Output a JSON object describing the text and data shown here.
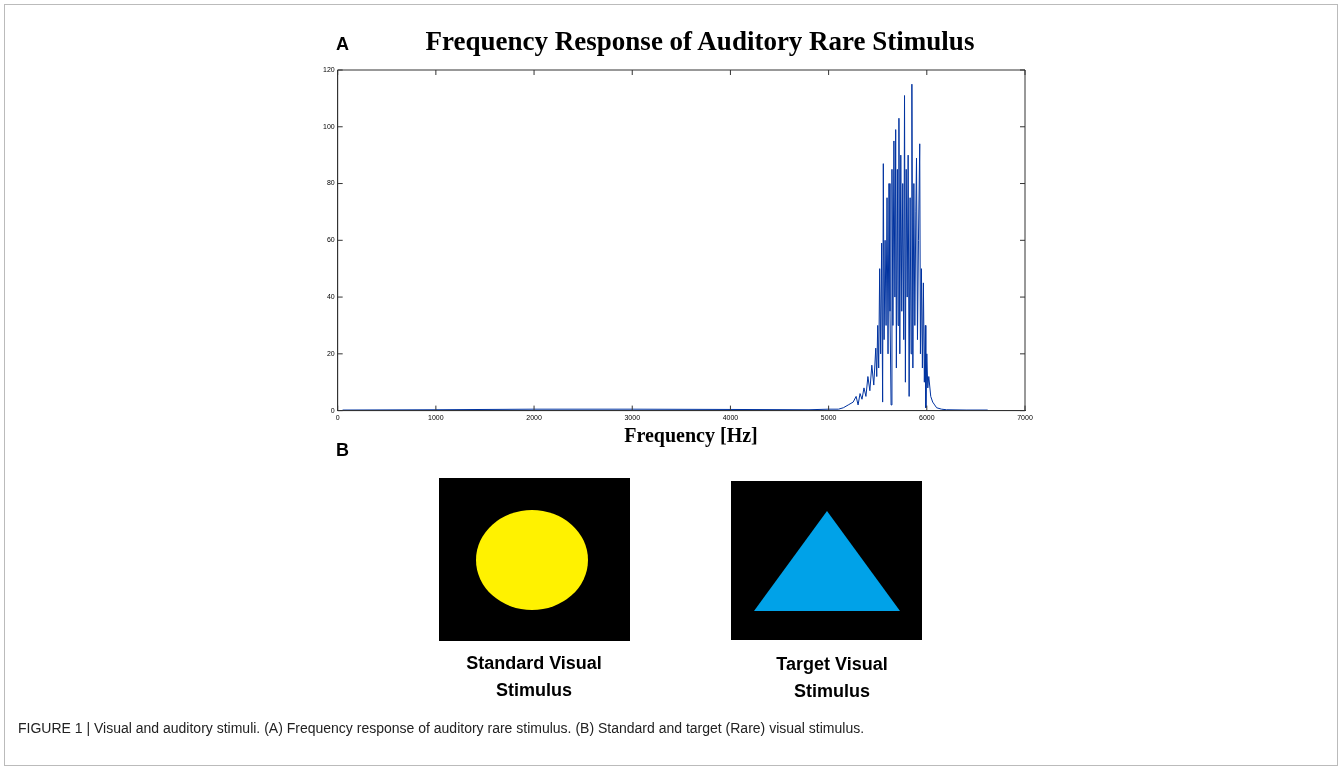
{
  "chart_data": {
    "type": "line",
    "title": "Frequency Response of Auditory Rare Stimulus",
    "xlabel": "Frequency [Hz]",
    "annotations": [
      "A",
      "B",
      "Standard Visual Stimulus",
      "Target Visual Stimulus",
      "FIGURE 1 | Visual and auditory stimuli. (A) Frequency response of auditory rare stimulus. (B) Standard and target (Rare) visual stimulus."
    ],
    "xlim": [
      0,
      7000
    ],
    "xticks": [
      0,
      1000,
      2000,
      3000,
      4000,
      5000,
      6000,
      7000
    ],
    "ylim": [
      0,
      120
    ],
    "yticks": [
      0,
      20,
      40,
      60,
      80,
      100,
      120
    ],
    "grid": false,
    "legend": false,
    "marker": "none",
    "line_style": "solid",
    "series": [
      {
        "color": "#0033a0",
        "x": [
          50,
          1000,
          2000,
          3000,
          4000,
          4800,
          5000,
          5100,
          5150,
          5200,
          5250,
          5280,
          5300,
          5320,
          5340,
          5360,
          5380,
          5400,
          5420,
          5440,
          5460,
          5480,
          5490,
          5500,
          5510,
          5520,
          5530,
          5540,
          5550,
          5557,
          5565,
          5575,
          5585,
          5595,
          5605,
          5615,
          5625,
          5636,
          5645,
          5655,
          5665,
          5675,
          5683,
          5690,
          5700,
          5708,
          5716,
          5725,
          5735,
          5745,
          5755,
          5765,
          5773,
          5782,
          5790,
          5800,
          5810,
          5820,
          5830,
          5840,
          5848,
          5858,
          5868,
          5878,
          5888,
          5895,
          5905,
          5915,
          5928,
          5935,
          5945,
          5955,
          5965,
          5975,
          5985,
          5990,
          6000,
          6010,
          6020,
          6040,
          6060,
          6080,
          6100,
          6150,
          6200,
          6400,
          6620
        ],
        "values": [
          0.2,
          0.3,
          0.5,
          0.5,
          0.4,
          0.3,
          0.5,
          0.5,
          1,
          2,
          3,
          5,
          2,
          6,
          4,
          8,
          5,
          12,
          7,
          16,
          9,
          22,
          12,
          30,
          15,
          50,
          20,
          59,
          3,
          87,
          25,
          60,
          30,
          75,
          20,
          80,
          35,
          2,
          85,
          30,
          95,
          40,
          99,
          15,
          85,
          30,
          103,
          20,
          90,
          35,
          80,
          25,
          111,
          10,
          85,
          40,
          90,
          5,
          75,
          20,
          115,
          15,
          80,
          30,
          70,
          89,
          25,
          60,
          94,
          20,
          50,
          15,
          45,
          10,
          30,
          1,
          20,
          8,
          12,
          5,
          3,
          2,
          1,
          0.5,
          0.3,
          0.2,
          0.2
        ]
      }
    ]
  }
}
